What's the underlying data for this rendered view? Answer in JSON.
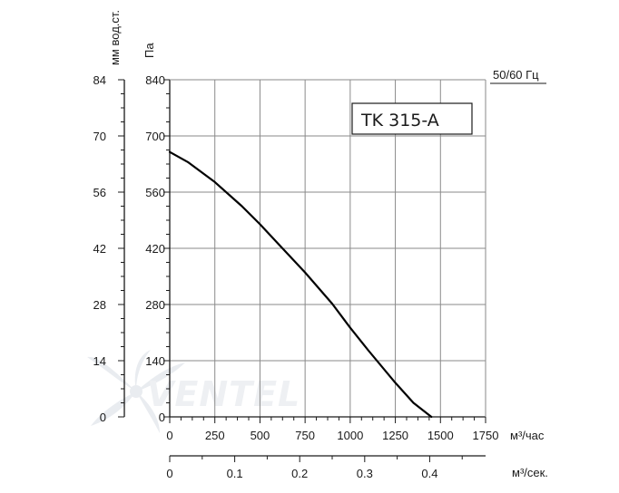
{
  "chart_data": {
    "type": "line",
    "title": "TK 315-A",
    "frequency_label": "50/60 Гц",
    "y_left_label": "мм вод.ст.",
    "y_left_ticks": [
      "84",
      "70",
      "56",
      "42",
      "28",
      "14",
      "0"
    ],
    "y_left_unit": "mm H2O",
    "ylabel": "Па",
    "ylim": [
      0,
      840
    ],
    "y_ticks": [
      "840",
      "700",
      "560",
      "420",
      "280",
      "140",
      "0"
    ],
    "xlabel": "м³/час",
    "xlim": [
      0,
      1750
    ],
    "x_ticks": [
      "0",
      "250",
      "500",
      "750",
      "1000",
      "1250",
      "1500",
      "1750"
    ],
    "x2label": "м³/сек.",
    "x2lim": [
      0,
      0.486
    ],
    "x2_ticks": [
      "0",
      "0.1",
      "0.2",
      "0.3",
      "0.4"
    ],
    "grid": true,
    "series": [
      {
        "name": "",
        "color": "#000000",
        "x": [
          0,
          100,
          250,
          400,
          500,
          600,
          750,
          900,
          1000,
          1100,
          1250,
          1350,
          1450
        ],
        "y": [
          660,
          635,
          585,
          525,
          480,
          432,
          360,
          282,
          222,
          166,
          85,
          35,
          0
        ]
      }
    ]
  },
  "watermark": {
    "text": "VENTEL"
  }
}
